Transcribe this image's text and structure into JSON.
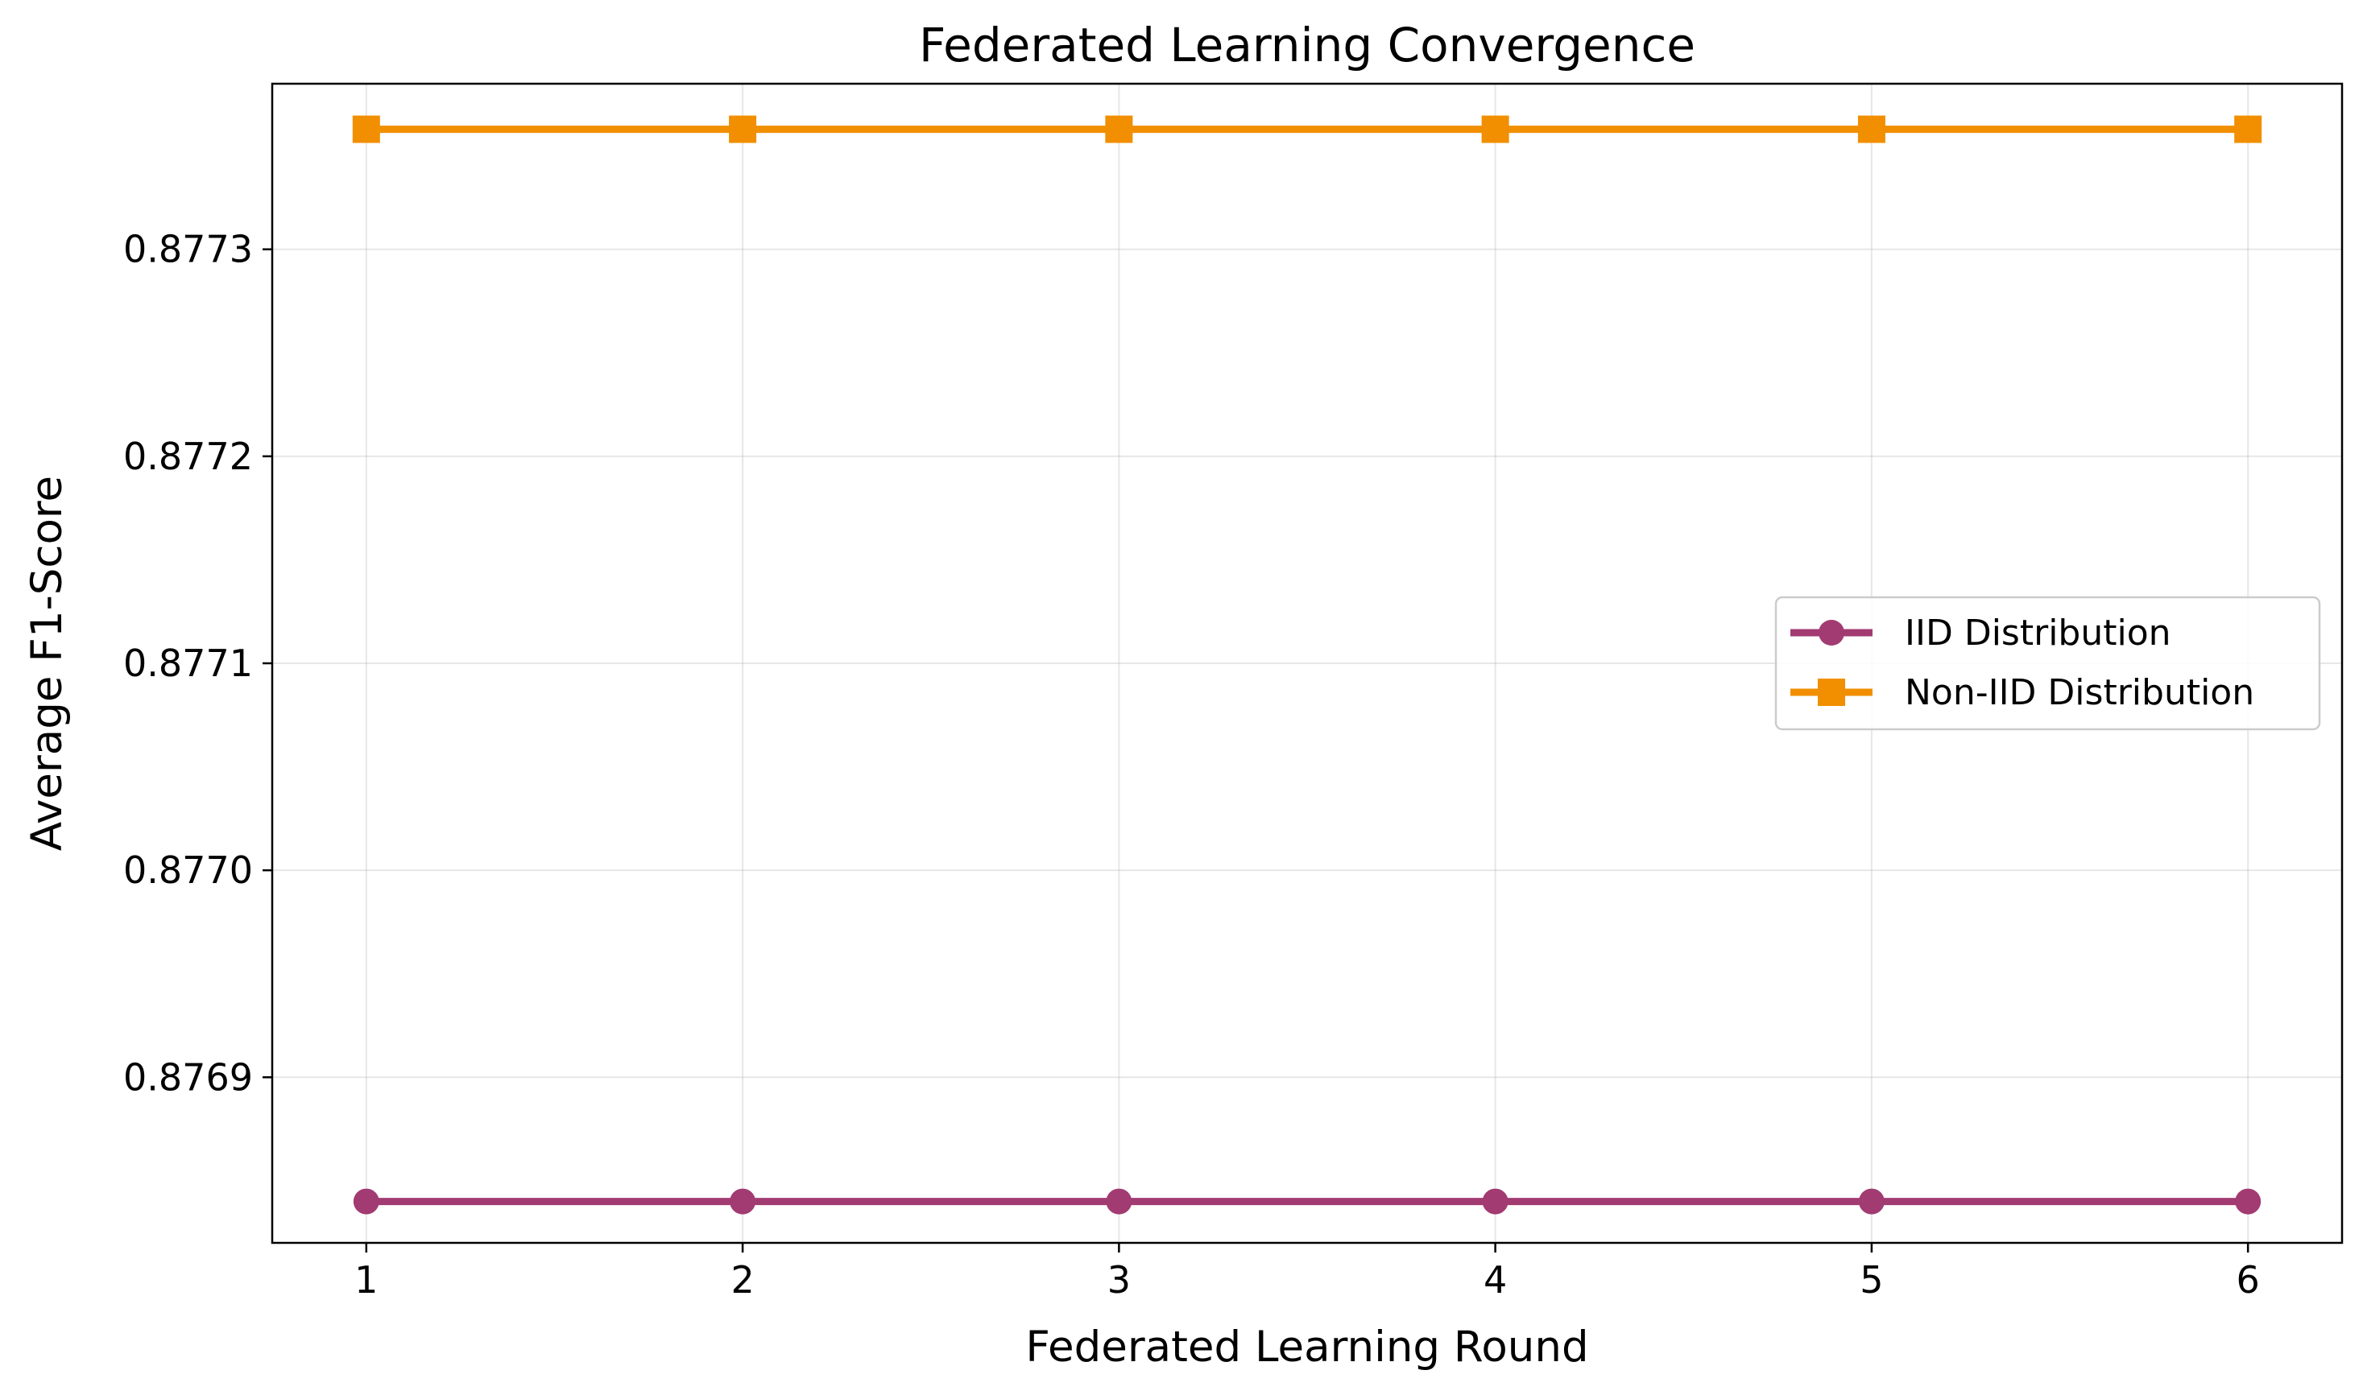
{
  "chart_data": {
    "type": "line",
    "title": "Federated Learning Convergence",
    "xlabel": "Federated Learning Round",
    "ylabel": "Average F1-Score",
    "x": [
      1,
      2,
      3,
      4,
      5,
      6
    ],
    "xlim": [
      0.75,
      6.25
    ],
    "ylim": [
      0.87682,
      0.87738
    ],
    "xticks": [
      1,
      2,
      3,
      4,
      5,
      6
    ],
    "xtick_labels": [
      "1",
      "2",
      "3",
      "4",
      "5",
      "6"
    ],
    "yticks": [
      0.8769,
      0.877,
      0.8771,
      0.8772,
      0.8773
    ],
    "ytick_labels": [
      "0.8769",
      "0.8770",
      "0.8771",
      "0.8772",
      "0.8773"
    ],
    "grid": true,
    "legend_position": "center-right",
    "series": [
      {
        "name": "IID Distribution",
        "values": [
          0.87684,
          0.87684,
          0.87684,
          0.87684,
          0.87684,
          0.87684
        ],
        "color": "#a23b72",
        "marker": "circle"
      },
      {
        "name": "Non-IID Distribution",
        "values": [
          0.877358,
          0.877358,
          0.877358,
          0.877358,
          0.877358,
          0.877358
        ],
        "color": "#f18f01",
        "marker": "square"
      }
    ]
  }
}
